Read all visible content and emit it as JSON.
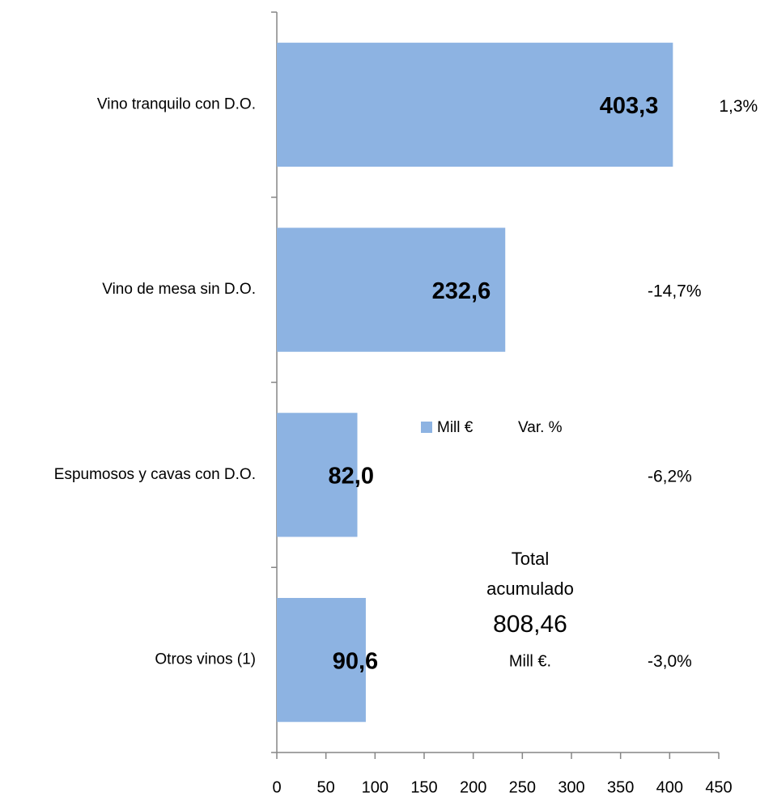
{
  "chart_data": {
    "type": "barh",
    "categories": [
      "Vino tranquilo con D.O.",
      "Vino de mesa sin D.O.",
      "Espumosos y cavas con D.O.",
      "Otros vinos (1)"
    ],
    "series": [
      {
        "name": "Mill €",
        "color": "#8db3e2",
        "values": [
          403.3,
          232.6,
          82.0,
          90.6
        ],
        "value_labels": [
          "403,3",
          "232,6",
          "82,0",
          "90,6"
        ]
      },
      {
        "name": "Var. %",
        "values": [
          1.3,
          -14.7,
          -6.2,
          -3.0
        ],
        "value_labels": [
          "1,3%",
          "-14,7%",
          "-6,2%",
          "-3,0%"
        ]
      }
    ],
    "annotation": [
      "Total",
      "acumulado",
      "808,46",
      "Mill €."
    ],
    "xlim": [
      0,
      450
    ],
    "xticks": [
      0,
      50,
      100,
      150,
      200,
      250,
      300,
      350,
      400,
      450
    ]
  }
}
